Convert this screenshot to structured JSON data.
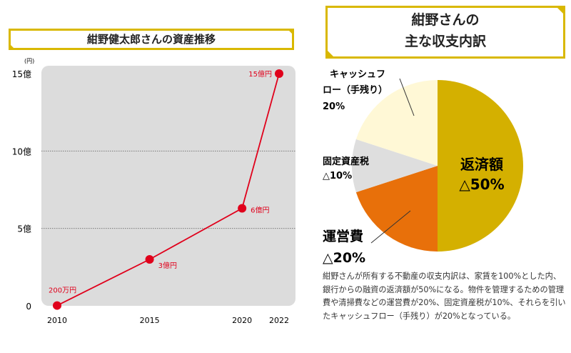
{
  "chart_data": [
    {
      "type": "line",
      "title": "紺野健太郎さんの資産推移",
      "ylabel": "(円)",
      "x": [
        2010,
        2015,
        2020,
        2022
      ],
      "values": [
        0.02,
        3,
        6.3,
        15
      ],
      "data_labels": [
        "200万円",
        "3億円",
        "6億円",
        "15億円"
      ],
      "yticks": [
        0,
        5,
        10,
        15
      ],
      "ytick_labels": [
        "0",
        "5億",
        "10億",
        "15億"
      ],
      "xtick_labels": [
        "2010",
        "2015",
        "2020",
        "2022"
      ],
      "ylim": [
        0,
        15
      ],
      "grid": "horizontal dotted",
      "colors": {
        "line": "#e0001b",
        "plot_bg": "#dcdcdc"
      }
    },
    {
      "type": "pie",
      "title_lines": [
        "紺野さんの",
        "主な収支内訳"
      ],
      "slices": [
        {
          "label": "返済額",
          "value_label": "△50%",
          "value": 50,
          "color": "#d4b000"
        },
        {
          "label": "運営費",
          "value_label": "△20%",
          "value": 20,
          "color": "#e8700a"
        },
        {
          "label": "固定資産税",
          "value_label": "△10%",
          "value": 10,
          "color": "#dedede"
        },
        {
          "label": "キャッシュフロー（手残り）",
          "label_lines": [
            "キャッシュフ",
            "ロー（手残り）"
          ],
          "value_label": "20%",
          "value": 20,
          "color": "#fff8d6"
        }
      ]
    }
  ],
  "description": "紺野さんが所有する不動産の収支内訳は、家賃を100%とした内、銀行からの融資の返済額が50%になる。物件を管理するための管理費や清掃費などの運営費が20%、固定資産税が10%、それらを引いたキャッシュフロー（手残り）が20%となっている。"
}
